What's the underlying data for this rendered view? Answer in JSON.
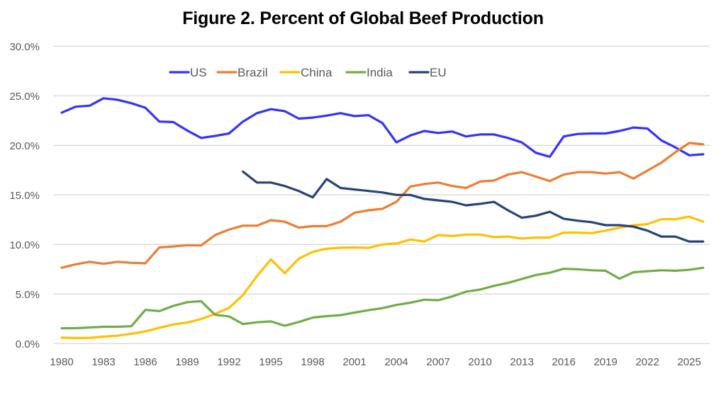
{
  "chart_data": {
    "type": "line",
    "title": "Figure 2. Percent of Global Beef Production",
    "xlabel": "",
    "ylabel": "",
    "ylim": [
      0,
      30
    ],
    "y_ticks": [
      0,
      5,
      10,
      15,
      20,
      25,
      30
    ],
    "y_tick_labels": [
      "0.0%",
      "5.0%",
      "10.0%",
      "15.0%",
      "20.0%",
      "25.0%",
      "30.0%"
    ],
    "x_tick_labels": [
      "1980",
      "1983",
      "1986",
      "1989",
      "1992",
      "1995",
      "1998",
      "2001",
      "2004",
      "2007",
      "2010",
      "2013",
      "2016",
      "2019",
      "2022",
      "2025"
    ],
    "x": [
      1980,
      1981,
      1982,
      1983,
      1984,
      1985,
      1986,
      1987,
      1988,
      1989,
      1990,
      1991,
      1992,
      1993,
      1994,
      1995,
      1996,
      1997,
      1998,
      1999,
      2000,
      2001,
      2002,
      2003,
      2004,
      2005,
      2006,
      2007,
      2008,
      2009,
      2010,
      2011,
      2012,
      2013,
      2014,
      2015,
      2016,
      2017,
      2018,
      2019,
      2020,
      2021,
      2022,
      2023,
      2024,
      2025,
      2026
    ],
    "grid": true,
    "legend_position": "top-left",
    "series": [
      {
        "name": "US",
        "color": "#3333ff",
        "values": [
          23.3,
          23.9,
          24.0,
          24.75,
          24.6,
          24.25,
          23.8,
          22.4,
          22.35,
          21.5,
          20.75,
          20.95,
          21.2,
          22.4,
          23.25,
          23.65,
          23.45,
          22.7,
          22.8,
          23.0,
          23.25,
          22.95,
          23.05,
          22.25,
          20.3,
          21.0,
          21.45,
          21.25,
          21.4,
          20.9,
          21.1,
          21.1,
          20.75,
          20.3,
          19.25,
          18.85,
          20.9,
          21.15,
          21.2,
          21.2,
          21.45,
          21.8,
          21.7,
          20.5,
          19.8,
          19.0,
          19.1
        ]
      },
      {
        "name": "Brazil",
        "color": "#ed7d31",
        "values": [
          7.65,
          8.0,
          8.25,
          8.05,
          8.25,
          8.15,
          8.1,
          9.7,
          9.8,
          9.93,
          9.9,
          10.95,
          11.5,
          11.9,
          11.9,
          12.45,
          12.3,
          11.7,
          11.85,
          11.85,
          12.3,
          13.2,
          13.45,
          13.6,
          14.3,
          15.85,
          16.1,
          16.25,
          15.9,
          15.7,
          16.35,
          16.45,
          17.05,
          17.3,
          16.85,
          16.4,
          17.05,
          17.3,
          17.3,
          17.15,
          17.3,
          16.65,
          17.45,
          18.25,
          19.3,
          20.25,
          20.1
        ]
      },
      {
        "name": "China",
        "color": "#ffc000",
        "values": [
          0.6,
          0.56,
          0.58,
          0.7,
          0.8,
          0.99,
          1.23,
          1.6,
          1.93,
          2.13,
          2.48,
          3.0,
          3.6,
          4.9,
          6.8,
          8.5,
          7.1,
          8.57,
          9.26,
          9.57,
          9.67,
          9.7,
          9.65,
          10.0,
          10.1,
          10.5,
          10.3,
          10.95,
          10.85,
          11.0,
          11.0,
          10.75,
          10.8,
          10.6,
          10.7,
          10.7,
          11.2,
          11.2,
          11.15,
          11.4,
          11.7,
          11.95,
          12.05,
          12.55,
          12.55,
          12.8,
          12.3
        ]
      },
      {
        "name": "India",
        "color": "#70ad47",
        "values": [
          1.55,
          1.56,
          1.63,
          1.7,
          1.7,
          1.76,
          3.4,
          3.28,
          3.8,
          4.18,
          4.28,
          2.9,
          2.75,
          1.98,
          2.15,
          2.24,
          1.8,
          2.18,
          2.63,
          2.77,
          2.87,
          3.13,
          3.37,
          3.58,
          3.9,
          4.13,
          4.43,
          4.38,
          4.76,
          5.24,
          5.45,
          5.83,
          6.12,
          6.52,
          6.92,
          7.15,
          7.55,
          7.5,
          7.4,
          7.35,
          6.55,
          7.2,
          7.3,
          7.4,
          7.35,
          7.45,
          7.65
        ]
      },
      {
        "name": "EU",
        "color": "#264478",
        "values": [
          null,
          null,
          null,
          null,
          null,
          null,
          null,
          null,
          null,
          null,
          null,
          null,
          null,
          17.35,
          16.25,
          16.25,
          15.9,
          15.4,
          14.75,
          16.6,
          15.7,
          15.55,
          15.4,
          15.25,
          15.0,
          15.0,
          14.6,
          14.45,
          14.3,
          13.95,
          14.1,
          14.3,
          13.45,
          12.7,
          12.9,
          13.3,
          12.6,
          12.4,
          12.25,
          11.95,
          11.95,
          11.8,
          11.4,
          10.8,
          10.8,
          10.3,
          10.3
        ]
      }
    ]
  }
}
